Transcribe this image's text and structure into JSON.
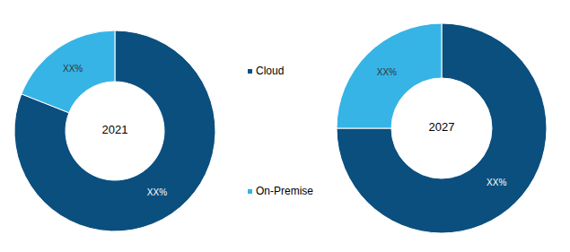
{
  "chart_data": [
    {
      "type": "donut",
      "title": "2021",
      "categories": [
        "Cloud",
        "On-Premise"
      ],
      "values": [
        81,
        19
      ],
      "value_labels": [
        "XX%",
        "XX%"
      ],
      "data_labels": true,
      "colors": [
        "#0b4f7f",
        "#36b4e6"
      ]
    },
    {
      "type": "donut",
      "title": "2027",
      "categories": [
        "Cloud",
        "On-Premise"
      ],
      "values": [
        75,
        25
      ],
      "value_labels": [
        "XX%",
        "XX%"
      ],
      "data_labels": true,
      "colors": [
        "#0b4f7f",
        "#36b4e6"
      ]
    }
  ]
}
